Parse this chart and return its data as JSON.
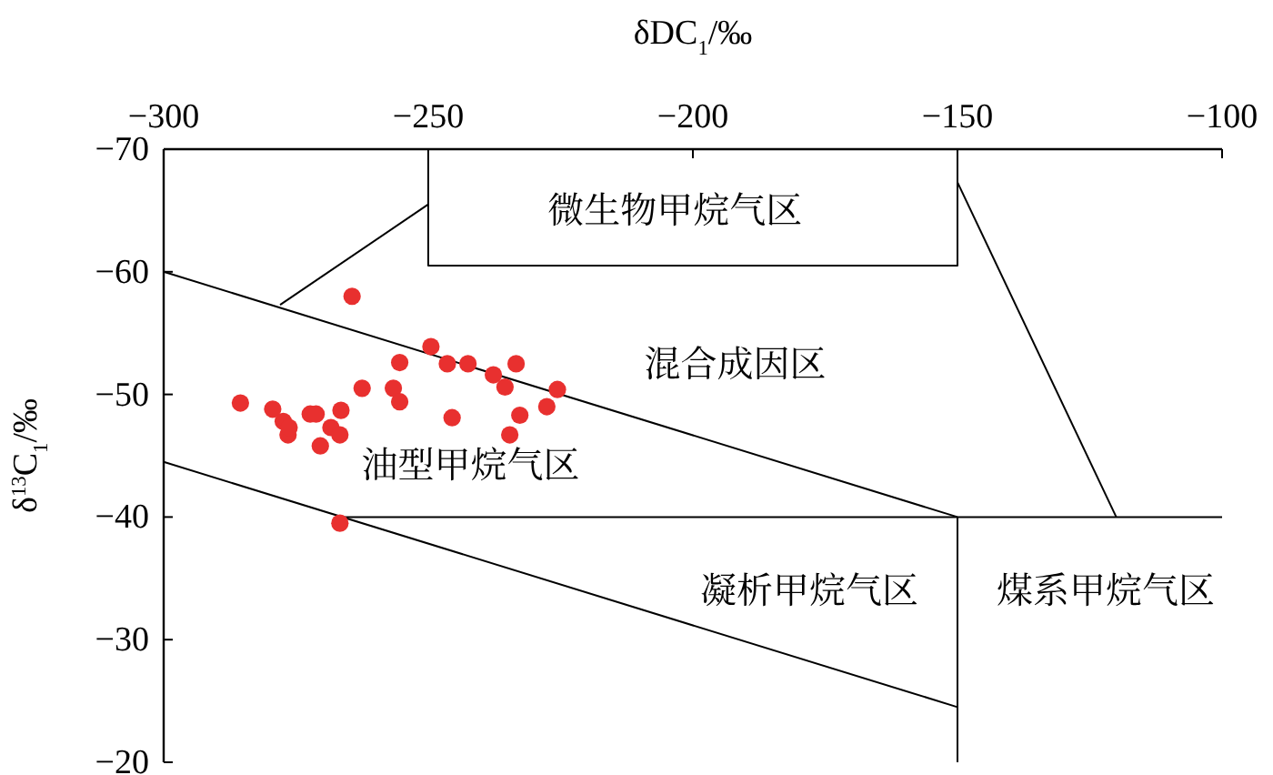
{
  "chart_data": {
    "type": "scatter",
    "xlabel": "δDC$_{1}$/‰",
    "ylabel": "δ$^{13}$C$_{1}$/‰",
    "xlim": [
      -300,
      -100
    ],
    "xticks": [
      -300,
      -250,
      -200,
      -150,
      -100
    ],
    "ylim": [
      -20,
      -70
    ],
    "yticks": [
      -70,
      -60,
      -50,
      -40,
      -30,
      -20
    ],
    "grid": false,
    "series": [
      {
        "marker": "circle",
        "color": "#e8302f",
        "x": [
          -264.4,
          -285.5,
          -279.4,
          -277.4,
          -276.5,
          -276.3,
          -272.3,
          -271.2,
          -270.4,
          -268.4,
          -266.7,
          -266.5,
          -262.5,
          -256.6,
          -255.4,
          -255.4,
          -249.5,
          -246.4,
          -242.5,
          -245.5,
          -237.7,
          -235.5,
          -233.4,
          -232.7,
          -234.6,
          -227.6,
          -225.6,
          -266.7
        ],
        "values": [
          -58.0,
          -49.3,
          -48.8,
          -47.8,
          -46.7,
          -47.3,
          -48.4,
          -48.4,
          -45.8,
          -47.3,
          -46.7,
          -48.7,
          -50.5,
          -50.5,
          -49.4,
          -52.6,
          -53.9,
          -52.5,
          -52.5,
          -48.1,
          -51.6,
          -50.6,
          -52.5,
          -48.3,
          -46.7,
          -49.0,
          -50.4,
          -39.5
        ]
      },
      {
        "type": "line",
        "color": "#000000",
        "x": [
          -300,
          -150
        ],
        "values": [
          -60,
          -40
        ]
      },
      {
        "type": "line",
        "color": "#000000",
        "x": [
          -300,
          -150
        ],
        "values": [
          -44.5,
          -24.5
        ]
      },
      {
        "type": "line",
        "color": "#000000",
        "x": [
          -266.3,
          -100
        ],
        "values": [
          -40,
          -40
        ]
      },
      {
        "type": "line",
        "color": "#000000",
        "x": [
          -150,
          -150
        ],
        "values": [
          -40,
          -20
        ]
      },
      {
        "type": "line",
        "color": "#000000",
        "x": [
          -250,
          -250,
          -150,
          -150
        ],
        "values": [
          -70,
          -60.5,
          -60.5,
          -70
        ]
      },
      {
        "type": "line",
        "color": "#000000",
        "x": [
          -278,
          -250
        ],
        "values": [
          -57.3,
          -65.5
        ]
      },
      {
        "type": "line",
        "color": "#000000",
        "x": [
          -150,
          -120
        ],
        "values": [
          -67.3,
          -40
        ]
      }
    ],
    "annotations": [
      "微生物甲烷气区",
      "混合成因区",
      "油型甲烷气区",
      "凝析甲烷气区",
      "煤系甲烷气区"
    ]
  }
}
